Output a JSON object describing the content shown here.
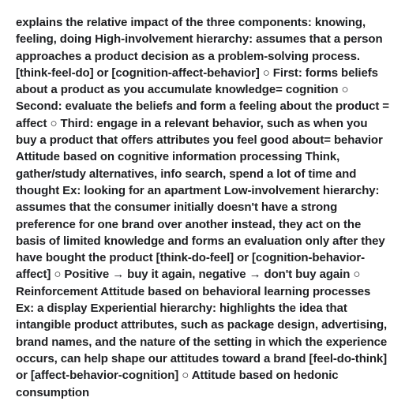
{
  "document": {
    "body": "explains the relative impact of the three components: knowing, feeling, doing High-involvement hierarchy: assumes that a person approaches a product decision as a problem-solving process. [think-feel-do] or [cognition-affect-behavior] ○ First: forms beliefs about a product as you accumulate knowledge= cognition ○ Second: evaluate the beliefs and form a feeling about the product = affect ○ Third: engage in a relevant behavior, such as when you buy a product that offers attributes you feel good about= behavior Attitude based on cognitive information processing Think, gather/study alternatives, info search, spend a lot of time and thought Ex: looking for an apartment Low-involvement hierarchy: assumes that the consumer initially doesn't have a strong preference for one brand over another instead, they act on the basis of limited knowledge and forms an evaluation only after they have bought the product [think-do-feel] or [cognition-behavior-affect] ○ Positive → buy it again, negative → don't buy again ○ Reinforcement Attitude based on behavioral learning processes Ex: a display Experiential hierarchy: highlights the idea that intangible product attributes, such as package design, advertising, brand names, and the nature of the setting in which the experience occurs, can help shape our attitudes toward a brand [feel-do-think] or [affect-behavior-cognition] ○ Attitude based on hedonic consumption"
  }
}
